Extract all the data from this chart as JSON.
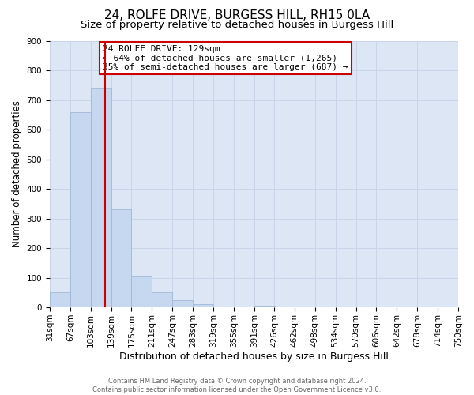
{
  "title": "24, ROLFE DRIVE, BURGESS HILL, RH15 0LA",
  "subtitle": "Size of property relative to detached houses in Burgess Hill",
  "xlabel": "Distribution of detached houses by size in Burgess Hill",
  "ylabel": "Number of detached properties",
  "bin_edges": [
    31,
    67,
    103,
    139,
    175,
    211,
    247,
    283,
    319,
    355,
    391,
    426,
    462,
    498,
    534,
    570,
    606,
    642,
    678,
    714,
    750
  ],
  "bin_labels": [
    "31sqm",
    "67sqm",
    "103sqm",
    "139sqm",
    "175sqm",
    "211sqm",
    "247sqm",
    "283sqm",
    "319sqm",
    "355sqm",
    "391sqm",
    "426sqm",
    "462sqm",
    "498sqm",
    "534sqm",
    "570sqm",
    "606sqm",
    "642sqm",
    "678sqm",
    "714sqm",
    "750sqm"
  ],
  "bar_heights": [
    50,
    660,
    740,
    330,
    105,
    50,
    25,
    12,
    0,
    0,
    5,
    0,
    0,
    0,
    0,
    0,
    0,
    0,
    0,
    0
  ],
  "bar_color": "#c5d8f0",
  "bar_edgecolor": "#a0b8d8",
  "vline_x": 129,
  "vline_color": "#cc0000",
  "ylim": [
    0,
    900
  ],
  "yticks": [
    0,
    100,
    200,
    300,
    400,
    500,
    600,
    700,
    800,
    900
  ],
  "annotation_title": "24 ROLFE DRIVE: 129sqm",
  "annotation_line1": "← 64% of detached houses are smaller (1,265)",
  "annotation_line2": "35% of semi-detached houses are larger (687) →",
  "annotation_box_facecolor": "#ffffff",
  "annotation_box_edgecolor": "#cc0000",
  "footer_line1": "Contains HM Land Registry data © Crown copyright and database right 2024.",
  "footer_line2": "Contains public sector information licensed under the Open Government Licence v3.0.",
  "background_color": "#ffffff",
  "axes_facecolor": "#dce6f5",
  "grid_color": "#c8d4e8",
  "title_fontsize": 11,
  "subtitle_fontsize": 9.5,
  "xlabel_fontsize": 9,
  "ylabel_fontsize": 8.5,
  "tick_fontsize": 7.5,
  "annotation_fontsize": 8,
  "footer_fontsize": 6
}
